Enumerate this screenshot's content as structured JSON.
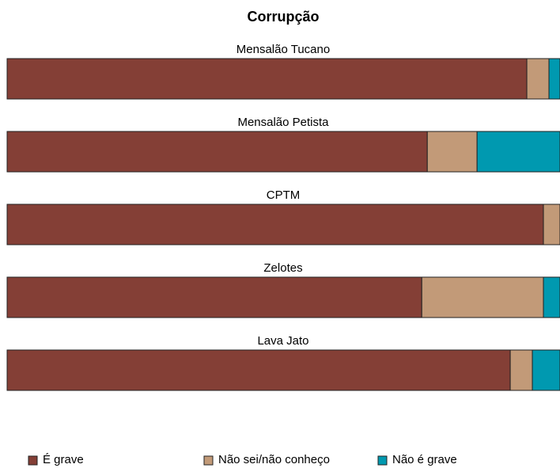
{
  "chart_data": {
    "type": "bar",
    "orientation": "horizontal",
    "stacked": true,
    "title": "Corrupção",
    "categories": [
      "Mensalão Tucano",
      "Mensalão Petista",
      "CPTM",
      "Zelotes",
      "Lava Jato"
    ],
    "series": [
      {
        "name": "É grave",
        "color": "#843f36",
        "values": [
          94,
          76,
          97,
          75,
          91
        ]
      },
      {
        "name": "Não sei/não conheço",
        "color": "#c29a78",
        "values": [
          4,
          9,
          3,
          22,
          4
        ]
      },
      {
        "name": "Não é grave",
        "color": "#0099b0",
        "values": [
          2,
          15,
          0,
          3,
          5
        ]
      }
    ],
    "xlim": [
      0,
      100
    ],
    "legend": "bottom"
  }
}
